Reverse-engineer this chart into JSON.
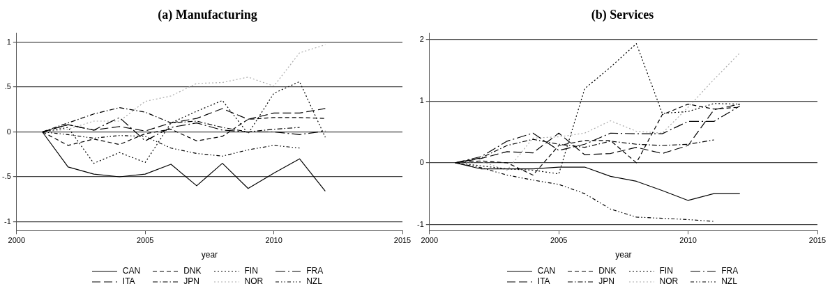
{
  "chart_data": [
    {
      "type": "line",
      "title": "(a) Manufacturing",
      "xlabel": "year",
      "x": [
        2001,
        2002,
        2003,
        2004,
        2005,
        2006,
        2007,
        2008,
        2009,
        2010,
        2011,
        2012
      ],
      "xlim": [
        2000,
        2015
      ],
      "xticks": [
        2000,
        2005,
        2010,
        2015
      ],
      "ylim": [
        -1.1,
        1.1
      ],
      "yticks": [
        {
          "value": -1,
          "label": "-1"
        },
        {
          "value": -0.5,
          "label": "-.5"
        },
        0,
        {
          "value": 0.5,
          "label": ".5"
        },
        1
      ],
      "grid": "y",
      "legend": "bottom",
      "marker": "none",
      "series": [
        {
          "name": "CAN",
          "color": "#000000",
          "line_style": "solid",
          "values": [
            0,
            -0.39,
            -0.47,
            -0.5,
            -0.47,
            -0.36,
            -0.6,
            -0.35,
            -0.63,
            -0.46,
            -0.3,
            -0.66
          ]
        },
        {
          "name": "DNK",
          "color": "#000000",
          "line_style": "dashed",
          "values": [
            0,
            -0.15,
            -0.08,
            -0.14,
            -0.02,
            0.03,
            -0.1,
            -0.05,
            0.14,
            0.16,
            0.16,
            0.15
          ]
        },
        {
          "name": "FIN",
          "color": "#000000",
          "line_style": "dotted",
          "values": [
            0,
            0.05,
            -0.35,
            -0.23,
            -0.34,
            0.1,
            0.23,
            0.35,
            -0.02,
            0.43,
            0.56,
            -0.06
          ]
        },
        {
          "name": "FRA",
          "color": "#000000",
          "line_style": "longdashdot",
          "values": [
            0,
            0.08,
            0.02,
            0.16,
            -0.1,
            0.05,
            0.1,
            0.02,
            0,
            0,
            -0.03,
            0.01
          ]
        },
        {
          "name": "ITA",
          "color": "#000000",
          "line_style": "longdash",
          "values": [
            0,
            0.08,
            0.02,
            0.06,
            0.01,
            0.1,
            0.15,
            0.26,
            0.14,
            0.21,
            0.21,
            0.26
          ]
        },
        {
          "name": "JPN",
          "color": "#000000",
          "line_style": "dashdot",
          "values": [
            0,
            0.1,
            0.2,
            0.27,
            0.22,
            0.1,
            0.12,
            0.05,
            0,
            0.03,
            0.05,
            null
          ]
        },
        {
          "name": "NOR",
          "color": "#aaaaaa",
          "line_style": "dotted",
          "values": [
            0,
            0.03,
            0.12,
            0.12,
            0.34,
            0.4,
            0.54,
            0.55,
            0.61,
            0.51,
            0.88,
            0.97
          ]
        },
        {
          "name": "NZL",
          "color": "#000000",
          "line_style": "dashdotdot",
          "values": [
            0,
            -0.03,
            -0.07,
            -0.04,
            -0.05,
            -0.18,
            -0.24,
            -0.27,
            -0.2,
            -0.15,
            -0.18,
            null
          ]
        }
      ]
    },
    {
      "type": "line",
      "title": "(b) Services",
      "xlabel": "year",
      "x": [
        2001,
        2002,
        2003,
        2004,
        2005,
        2006,
        2007,
        2008,
        2009,
        2010,
        2011,
        2012
      ],
      "xlim": [
        2000,
        2015
      ],
      "xticks": [
        2000,
        2005,
        2010,
        2015
      ],
      "ylim": [
        -1.1,
        2.1
      ],
      "yticks": [
        -1,
        0,
        1,
        2
      ],
      "grid": "y",
      "legend": "bottom",
      "marker": "none",
      "series": [
        {
          "name": "CAN",
          "color": "#000000",
          "line_style": "solid",
          "values": [
            0,
            -0.1,
            -0.1,
            -0.1,
            -0.07,
            -0.07,
            -0.22,
            -0.3,
            -0.45,
            -0.61,
            -0.5,
            -0.5
          ]
        },
        {
          "name": "DNK",
          "color": "#000000",
          "line_style": "dashed",
          "values": [
            0,
            0.03,
            0,
            -0.2,
            0.28,
            0.36,
            0.36,
            0,
            0.78,
            0.95,
            0.87,
            0.9
          ]
        },
        {
          "name": "FIN",
          "color": "#000000",
          "line_style": "dotted",
          "values": [
            0,
            -0.05,
            -0.1,
            -0.12,
            -0.18,
            1.2,
            1.55,
            1.93,
            0.8,
            0.83,
            0.96,
            0.95
          ]
        },
        {
          "name": "FRA",
          "color": "#000000",
          "line_style": "longdashdot",
          "values": [
            0,
            0.1,
            0.35,
            0.48,
            0.2,
            0.3,
            0.48,
            0.47,
            0.47,
            0.67,
            0.67,
            0.92
          ]
        },
        {
          "name": "ITA",
          "color": "#000000",
          "line_style": "longdash",
          "values": [
            0,
            0.07,
            0.18,
            0.16,
            0.48,
            0.13,
            0.15,
            0.25,
            0.15,
            0.28,
            0.86,
            0.95
          ]
        },
        {
          "name": "JPN",
          "color": "#000000",
          "line_style": "dashdot",
          "values": [
            0,
            0.08,
            0.28,
            0.38,
            0.3,
            0.25,
            0.35,
            0.3,
            0.28,
            0.3,
            0.37,
            null
          ]
        },
        {
          "name": "NOR",
          "color": "#aaaaaa",
          "line_style": "dotted",
          "values": [
            0,
            0.02,
            -0.12,
            0.4,
            0.42,
            0.48,
            0.68,
            0.51,
            0.48,
            0.9,
            1.35,
            1.78
          ]
        },
        {
          "name": "NZL",
          "color": "#000000",
          "line_style": "dashdotdot",
          "values": [
            0,
            -0.08,
            -0.2,
            -0.28,
            -0.35,
            -0.5,
            -0.75,
            -0.88,
            -0.9,
            -0.92,
            -0.95,
            null
          ]
        }
      ]
    }
  ]
}
